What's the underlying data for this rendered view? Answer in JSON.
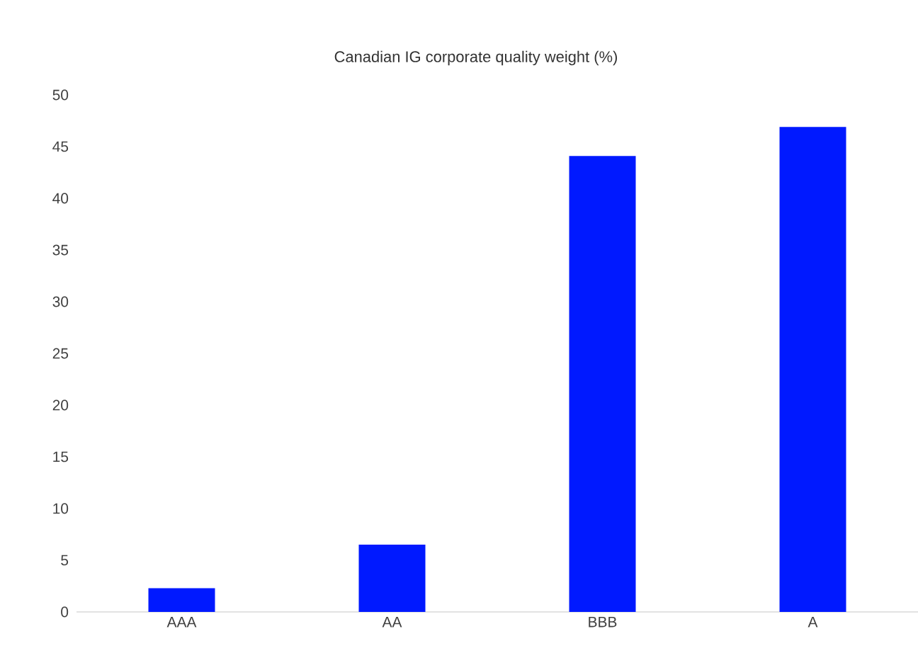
{
  "chart_data": {
    "type": "bar",
    "title": "Canadian IG corporate quality weight (%)",
    "categories": [
      "AAA",
      "AA",
      "BBB",
      "A"
    ],
    "values": [
      2.3,
      6.5,
      44.1,
      46.9
    ],
    "color": "#0019ff",
    "ylim": [
      0,
      50
    ],
    "yticks": [
      0,
      5,
      10,
      15,
      20,
      25,
      30,
      35,
      40,
      45,
      50
    ]
  }
}
